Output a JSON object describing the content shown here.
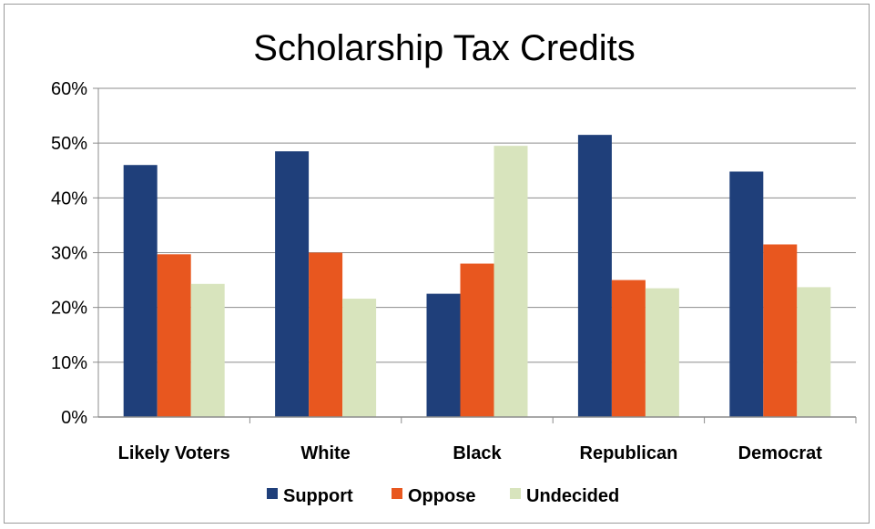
{
  "chart_data": {
    "type": "bar",
    "title": "Scholarship Tax Credits",
    "categories": [
      "Likely Voters",
      "White",
      "Black",
      "Republican",
      "Democrat"
    ],
    "series": [
      {
        "name": "Support",
        "color": "#1f3f7a",
        "values": [
          46,
          48.5,
          22.5,
          51.5,
          44.8
        ]
      },
      {
        "name": "Oppose",
        "color": "#e8571f",
        "values": [
          29.7,
          30,
          28,
          25,
          31.5
        ]
      },
      {
        "name": "Undecided",
        "color": "#d8e4bd",
        "values": [
          24.3,
          21.6,
          49.5,
          23.5,
          23.7
        ]
      }
    ],
    "yticks": [
      "0%",
      "10%",
      "20%",
      "30%",
      "40%",
      "50%",
      "60%"
    ],
    "ylim": [
      0,
      60
    ],
    "grid": true,
    "legend": "bottom"
  }
}
